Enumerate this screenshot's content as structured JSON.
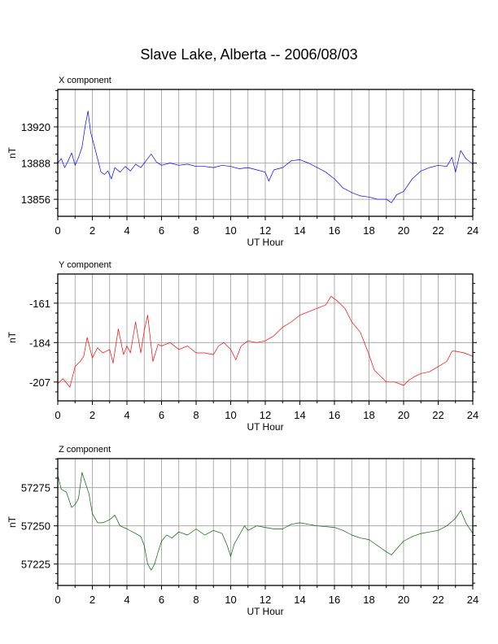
{
  "title": "Slave Lake, Alberta -- 2006/08/03",
  "chart_data": [
    {
      "type": "line",
      "panel_title": "X component",
      "xlabel": "UT Hour",
      "ylabel": "nT",
      "xlim": [
        0,
        24
      ],
      "ylim": [
        13841,
        13953
      ],
      "xticks": [
        0,
        2,
        4,
        6,
        8,
        10,
        12,
        14,
        16,
        18,
        20,
        22,
        24
      ],
      "yticks": [
        13856,
        13888,
        13920
      ],
      "grid": true,
      "series": [
        {
          "color": "#0000ff",
          "x": [
            0,
            0.2,
            0.4,
            0.6,
            0.8,
            1.0,
            1.2,
            1.4,
            1.6,
            1.75,
            1.9,
            2.1,
            2.3,
            2.5,
            2.7,
            2.9,
            3.1,
            3.3,
            3.6,
            3.9,
            4.2,
            4.5,
            4.8,
            5.1,
            5.4,
            5.7,
            6.0,
            6.5,
            7.0,
            7.5,
            8.0,
            8.5,
            9.0,
            9.5,
            10.0,
            10.5,
            11.0,
            11.5,
            12.0,
            12.2,
            12.5,
            13.0,
            13.5,
            14.0,
            14.5,
            15.0,
            15.5,
            16.0,
            16.5,
            17.0,
            17.5,
            18.0,
            18.5,
            19.0,
            19.3,
            19.6,
            20.0,
            20.5,
            21.0,
            21.5,
            22.0,
            22.5,
            22.8,
            23.0,
            23.3,
            23.6,
            24.0
          ],
          "values": [
            13888,
            13892,
            13884,
            13890,
            13897,
            13886,
            13893,
            13902,
            13922,
            13934,
            13915,
            13904,
            13892,
            13880,
            13878,
            13881,
            13874,
            13884,
            13880,
            13885,
            13881,
            13887,
            13884,
            13890,
            13896,
            13889,
            13886,
            13888,
            13886,
            13887,
            13885,
            13885,
            13884,
            13886,
            13885,
            13883,
            13884,
            13882,
            13880,
            13872,
            13882,
            13884,
            13890,
            13891,
            13888,
            13884,
            13880,
            13874,
            13866,
            13862,
            13859,
            13858,
            13856,
            13856,
            13853,
            13860,
            13863,
            13874,
            13881,
            13884,
            13886,
            13885,
            13893,
            13880,
            13899,
            13892,
            13887
          ]
        }
      ]
    },
    {
      "type": "line",
      "panel_title": "Y component",
      "xlabel": "UT Hour",
      "ylabel": "nT",
      "xlim": [
        0,
        24
      ],
      "ylim": [
        -218,
        -144
      ],
      "xticks": [
        0,
        2,
        4,
        6,
        8,
        10,
        12,
        14,
        16,
        18,
        20,
        22,
        24
      ],
      "yticks": [
        -207,
        -184,
        -161
      ],
      "grid": true,
      "series": [
        {
          "color": "#ff0000",
          "x": [
            0,
            0.3,
            0.7,
            1.0,
            1.3,
            1.5,
            1.7,
            2.0,
            2.3,
            2.6,
            3.0,
            3.2,
            3.5,
            3.8,
            4.0,
            4.2,
            4.5,
            4.8,
            5.0,
            5.2,
            5.5,
            5.8,
            6.0,
            6.5,
            7.0,
            7.5,
            8.0,
            8.5,
            9.0,
            9.3,
            9.6,
            10.0,
            10.3,
            10.6,
            11.0,
            11.5,
            12.0,
            12.5,
            13.0,
            13.5,
            14.0,
            14.5,
            15.0,
            15.5,
            15.8,
            16.2,
            16.6,
            17.0,
            17.5,
            18.0,
            18.3,
            18.6,
            19.0,
            19.5,
            20.0,
            20.3,
            20.6,
            21.0,
            21.5,
            22.0,
            22.5,
            22.8,
            23.0,
            23.5,
            24.0
          ],
          "values": [
            -208,
            -205,
            -210,
            -198,
            -195,
            -192,
            -181,
            -193,
            -187,
            -190,
            -188,
            -196,
            -176,
            -191,
            -186,
            -190,
            -172,
            -190,
            -177,
            -168,
            -195,
            -185,
            -186,
            -184,
            -188,
            -186,
            -190,
            -190,
            -191,
            -186,
            -184,
            -188,
            -194,
            -186,
            -183,
            -184,
            -183,
            -180,
            -175,
            -172,
            -168,
            -166,
            -164,
            -162,
            -157,
            -160,
            -164,
            -172,
            -178,
            -191,
            -200,
            -203,
            -207,
            -207,
            -209,
            -206,
            -204,
            -202,
            -201,
            -198,
            -195,
            -189,
            -189,
            -190,
            -192
          ]
        }
      ]
    },
    {
      "type": "line",
      "panel_title": "Z component",
      "xlabel": "UT Hour",
      "ylabel": "nT",
      "xlim": [
        0,
        24
      ],
      "ylim": [
        57211,
        57294
      ],
      "xticks": [
        0,
        2,
        4,
        6,
        8,
        10,
        12,
        14,
        16,
        18,
        20,
        22,
        24
      ],
      "yticks": [
        57225,
        57250,
        57275
      ],
      "grid": true,
      "series": [
        {
          "color": "#006000",
          "x": [
            0,
            0.2,
            0.5,
            0.8,
            1.0,
            1.2,
            1.4,
            1.6,
            1.8,
            2.0,
            2.3,
            2.6,
            3.0,
            3.3,
            3.6,
            4.0,
            4.5,
            4.8,
            5.0,
            5.2,
            5.4,
            5.6,
            5.8,
            6.0,
            6.3,
            6.6,
            7.0,
            7.5,
            8.0,
            8.5,
            9.0,
            9.5,
            9.8,
            10.0,
            10.2,
            10.5,
            10.8,
            11.0,
            11.5,
            12.0,
            12.5,
            13.0,
            13.5,
            14.0,
            15.0,
            16.0,
            16.5,
            17.0,
            17.5,
            18.0,
            18.5,
            19.0,
            19.3,
            19.6,
            20.0,
            20.5,
            21.0,
            21.5,
            22.0,
            22.5,
            22.8,
            23.0,
            23.3,
            23.6,
            24.0
          ],
          "values": [
            57283,
            57274,
            57272,
            57262,
            57264,
            57268,
            57285,
            57278,
            57271,
            57258,
            57252,
            57252,
            57254,
            57257,
            57250,
            57248,
            57245,
            57243,
            57237,
            57225,
            57221,
            57225,
            57233,
            57240,
            57244,
            57242,
            57246,
            57244,
            57248,
            57244,
            57247,
            57245,
            57237,
            57230,
            57238,
            57244,
            57250,
            57247,
            57250,
            57249,
            57248,
            57248,
            57251,
            57252,
            57250,
            57249,
            57247,
            57244,
            57242,
            57241,
            57237,
            57233,
            57231,
            57235,
            57240,
            57243,
            57245,
            57246,
            57247,
            57250,
            57253,
            57255,
            57260,
            57252,
            57245
          ]
        }
      ]
    }
  ]
}
